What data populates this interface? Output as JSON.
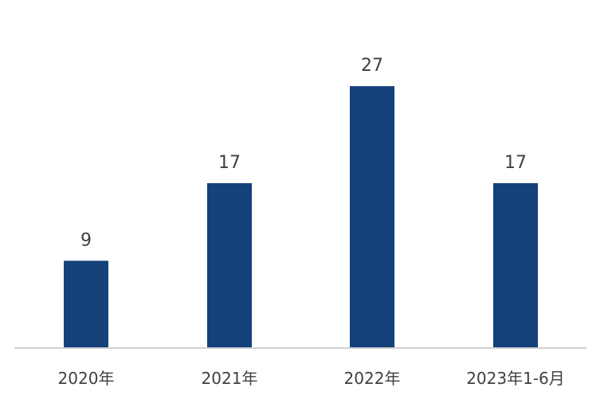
{
  "chart_data": {
    "type": "bar",
    "categories": [
      "2020年",
      "2021年",
      "2022年",
      "2023年1-6月"
    ],
    "values": [
      9,
      17,
      27,
      17
    ],
    "value_labels": [
      "9",
      "17",
      "27",
      "17"
    ],
    "title": "",
    "xlabel": "",
    "ylabel": "",
    "ylim": [
      0,
      30
    ],
    "grid": false,
    "legend": "none",
    "bar_color": "#15407a",
    "text_color": "#404040",
    "axis_color": "#d0d0d0"
  }
}
